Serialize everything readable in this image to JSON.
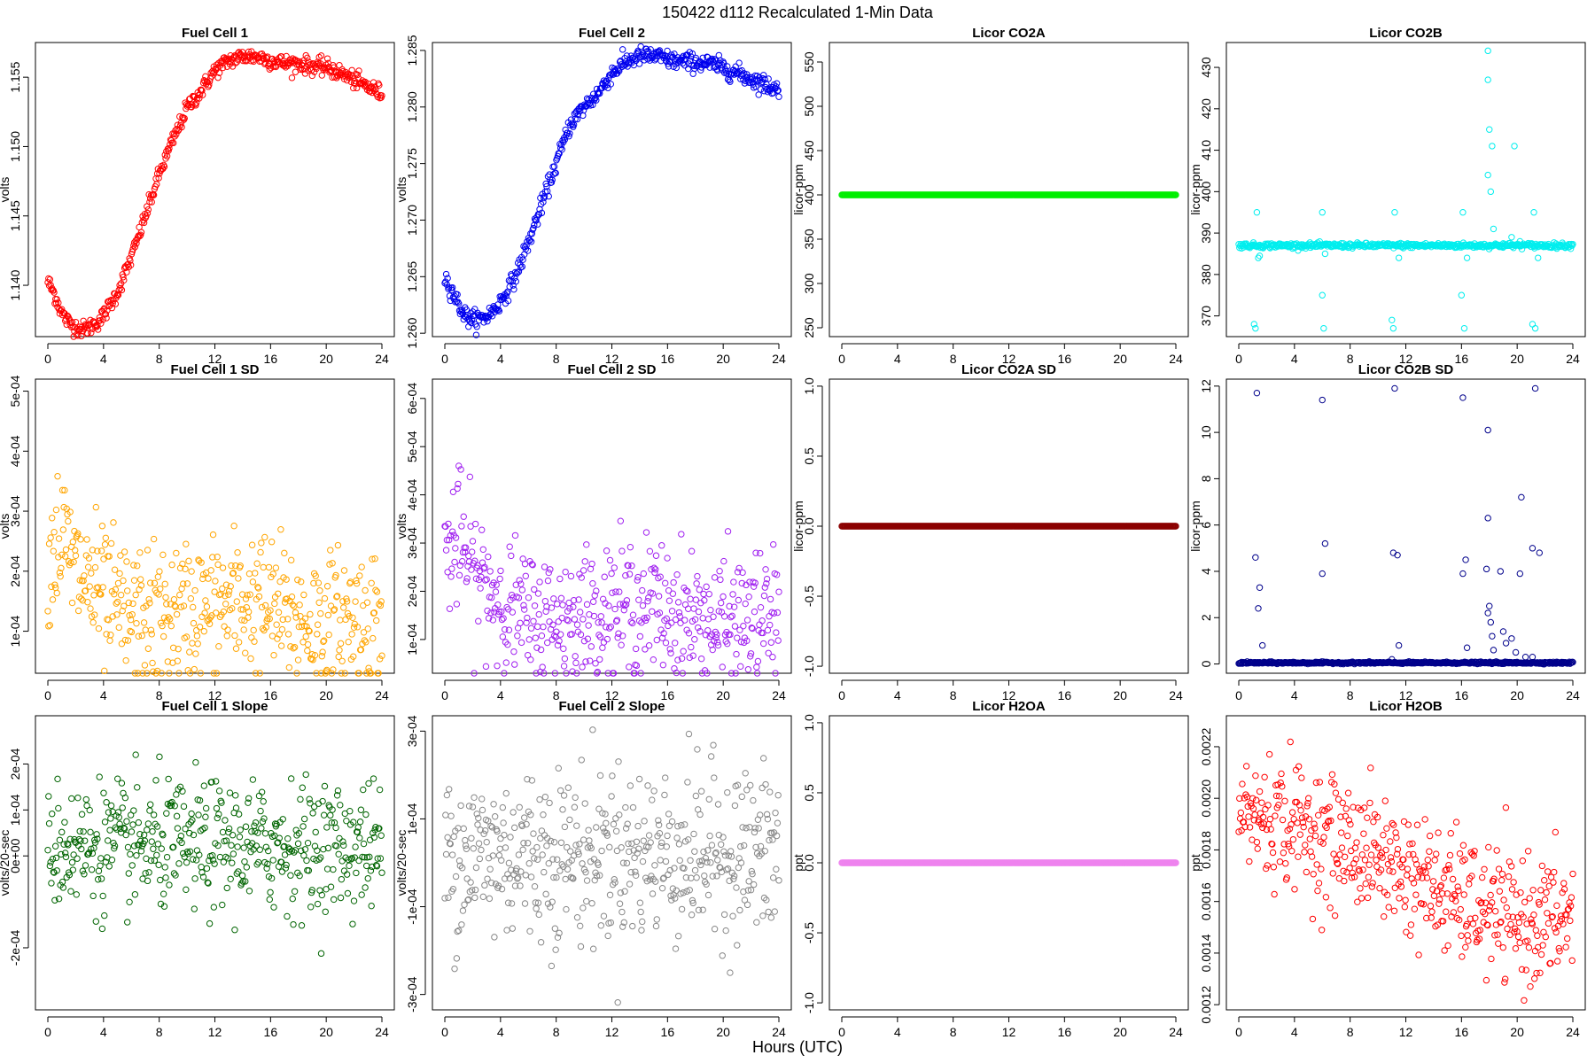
{
  "figure": {
    "title": "150422   d112   Recalculated 1-Min Data",
    "xlabel": "Hours (UTC)"
  },
  "chart_data": [
    {
      "type": "scatter",
      "title": "Fuel Cell 1",
      "ylabel": "volts",
      "color": "#ff0000",
      "xlim": [
        0,
        24
      ],
      "ylim": [
        1.1363,
        1.1575
      ],
      "xticks": [
        0,
        4,
        8,
        12,
        16,
        20,
        24
      ],
      "yticks": [
        "1.140",
        "1.145",
        "1.150",
        "1.155"
      ],
      "ytick_values": [
        1.14,
        1.145,
        1.15,
        1.155
      ],
      "series": [
        {
          "x": [
            0,
            0.5,
            1,
            1.5,
            2,
            2.5,
            3,
            3.5,
            4,
            5,
            6,
            7,
            8,
            9,
            10,
            11,
            12,
            13,
            14,
            15,
            16,
            17,
            18,
            19,
            20,
            21,
            22,
            23,
            24
          ],
          "y": [
            1.1403,
            1.1393,
            1.138,
            1.1373,
            1.137,
            1.1368,
            1.137,
            1.1373,
            1.1378,
            1.1395,
            1.142,
            1.145,
            1.148,
            1.1505,
            1.1528,
            1.154,
            1.1555,
            1.1562,
            1.1565,
            1.1565,
            1.1562,
            1.156,
            1.156,
            1.1558,
            1.1557,
            1.1553,
            1.1548,
            1.1543,
            1.1538
          ],
          "spread": 0.0003
        }
      ]
    },
    {
      "type": "scatter",
      "title": "Fuel Cell 2",
      "ylabel": "volts",
      "color": "#0000ee",
      "xlim": [
        0,
        24
      ],
      "ylim": [
        1.2597,
        1.2857
      ],
      "xticks": [
        0,
        4,
        8,
        12,
        16,
        20,
        24
      ],
      "yticks": [
        "1.260",
        "1.265",
        "1.270",
        "1.275",
        "1.280",
        "1.285"
      ],
      "ytick_values": [
        1.26,
        1.265,
        1.27,
        1.275,
        1.28,
        1.285
      ],
      "series": [
        {
          "x": [
            0,
            0.5,
            1,
            1.5,
            2,
            2.5,
            3,
            3.5,
            4,
            5,
            6,
            7,
            8,
            9,
            10,
            11,
            12,
            13,
            14,
            15,
            16,
            17,
            18,
            19,
            20,
            21,
            22,
            23,
            24
          ],
          "y": [
            1.265,
            1.2638,
            1.2625,
            1.2615,
            1.2612,
            1.2612,
            1.2615,
            1.262,
            1.2628,
            1.2648,
            1.268,
            1.2715,
            1.275,
            1.2785,
            1.28,
            1.2812,
            1.283,
            1.284,
            1.2845,
            1.2845,
            1.2842,
            1.284,
            1.284,
            1.2838,
            1.2835,
            1.283,
            1.2825,
            1.282,
            1.2815
          ],
          "spread": 0.0004
        }
      ]
    },
    {
      "type": "scatter",
      "title": "Licor CO2A",
      "ylabel": "licor-ppm",
      "color": "#00ee00",
      "xlim": [
        0,
        24
      ],
      "ylim": [
        240,
        572
      ],
      "xticks": [
        0,
        4,
        8,
        12,
        16,
        20,
        24
      ],
      "yticks": [
        "250",
        "300",
        "350",
        "400",
        "450",
        "500",
        "550"
      ],
      "ytick_values": [
        250,
        300,
        350,
        400,
        450,
        500,
        550
      ],
      "series": [
        {
          "x": [
            0,
            24
          ],
          "y": [
            400,
            400
          ],
          "spread": 0
        }
      ]
    },
    {
      "type": "scatter",
      "title": "Licor CO2B",
      "ylabel": "licor-ppm",
      "color": "#00eeee",
      "xlim": [
        0,
        24
      ],
      "ylim": [
        365,
        436
      ],
      "xticks": [
        0,
        4,
        8,
        12,
        16,
        20,
        24
      ],
      "yticks": [
        "370",
        "380",
        "390",
        "400",
        "410",
        "420",
        "430"
      ],
      "ytick_values": [
        370,
        380,
        390,
        400,
        410,
        420,
        430
      ],
      "series": [
        {
          "x": [
            0,
            24
          ],
          "y": [
            387,
            387
          ],
          "spread": 0.3
        }
      ],
      "outliers": [
        [
          1.3,
          395
        ],
        [
          1.4,
          384
        ],
        [
          1.5,
          384.5
        ],
        [
          1.2,
          367
        ],
        [
          1.1,
          368
        ],
        [
          6.0,
          395
        ],
        [
          6.1,
          367
        ],
        [
          6.0,
          375
        ],
        [
          6.2,
          385
        ],
        [
          11.2,
          395
        ],
        [
          11.1,
          367
        ],
        [
          11.0,
          369
        ],
        [
          11.5,
          384
        ],
        [
          16.1,
          395
        ],
        [
          16.2,
          367
        ],
        [
          16.0,
          375
        ],
        [
          16.4,
          384
        ],
        [
          17.9,
          434
        ],
        [
          17.9,
          427
        ],
        [
          18.0,
          415
        ],
        [
          18.2,
          411
        ],
        [
          17.9,
          404
        ],
        [
          18.1,
          400
        ],
        [
          18.3,
          391
        ],
        [
          19.8,
          411
        ],
        [
          19.6,
          389
        ],
        [
          21.2,
          395
        ],
        [
          21.3,
          367
        ],
        [
          21.1,
          368
        ],
        [
          21.5,
          384
        ],
        [
          19.0,
          387.5
        ],
        [
          20.2,
          388
        ]
      ]
    },
    {
      "type": "scatter",
      "title": "Fuel Cell 1 SD",
      "ylabel": "volts",
      "color": "#ffa500",
      "xlim": [
        0,
        24
      ],
      "ylim": [
        3e-05,
        0.00052
      ],
      "xticks": [
        0,
        4,
        8,
        12,
        16,
        20,
        24
      ],
      "yticks": [
        "1e-04",
        "2e-04",
        "3e-04",
        "4e-04",
        "5e-04"
      ],
      "ytick_values": [
        0.0001,
        0.0002,
        0.0003,
        0.0004,
        0.0005
      ],
      "series": [
        {
          "x": [
            0,
            1,
            2,
            3,
            4,
            6,
            8,
            10,
            12,
            14,
            16,
            18,
            20,
            22,
            24
          ],
          "y": [
            0.00022,
            0.00026,
            0.0002,
            0.00018,
            0.00015,
            0.00012,
            0.00012,
            0.00013,
            0.00014,
            0.00015,
            0.00014,
            0.00012,
            0.00011,
            0.00012,
            0.00012
          ],
          "spread": 6e-05
        }
      ]
    },
    {
      "type": "scatter",
      "title": "Fuel Cell 2 SD",
      "ylabel": "volts",
      "color": "#a020f0",
      "xlim": [
        0,
        24
      ],
      "ylim": [
        3e-05,
        0.00064
      ],
      "xticks": [
        0,
        4,
        8,
        12,
        16,
        20,
        24
      ],
      "yticks": [
        "1e-04",
        "2e-04",
        "3e-04",
        "4e-04",
        "5e-04",
        "6e-04"
      ],
      "ytick_values": [
        0.0001,
        0.0002,
        0.0003,
        0.0004,
        0.0005,
        0.0006
      ],
      "series": [
        {
          "x": [
            0,
            1,
            2,
            3,
            4,
            6,
            8,
            10,
            12,
            14,
            16,
            18,
            20,
            22,
            24
          ],
          "y": [
            0.00027,
            0.00031,
            0.00024,
            0.00021,
            0.00018,
            0.00014,
            0.00014,
            0.00015,
            0.00016,
            0.00017,
            0.00016,
            0.00014,
            0.00013,
            0.00014,
            0.00014
          ],
          "spread": 7e-05
        }
      ]
    },
    {
      "type": "scatter",
      "title": "Licor CO2A SD",
      "ylabel": "licor-ppm",
      "color": "#8b0000",
      "xlim": [
        0,
        24
      ],
      "ylim": [
        -1.05,
        1.05
      ],
      "xticks": [
        0,
        4,
        8,
        12,
        16,
        20,
        24
      ],
      "yticks": [
        "-1.0",
        "-0.5",
        "0.0",
        "0.5",
        "1.0"
      ],
      "ytick_values": [
        -1.0,
        -0.5,
        0.0,
        0.5,
        1.0
      ],
      "series": [
        {
          "x": [
            0,
            24
          ],
          "y": [
            0,
            0
          ],
          "spread": 0
        }
      ]
    },
    {
      "type": "scatter",
      "title": "Licor CO2B SD",
      "ylabel": "licor-ppm",
      "color": "#00008b",
      "xlim": [
        0,
        24
      ],
      "ylim": [
        -0.4,
        12.3
      ],
      "xticks": [
        0,
        4,
        8,
        12,
        16,
        20,
        24
      ],
      "yticks": [
        "0",
        "2",
        "4",
        "6",
        "8",
        "10",
        "12"
      ],
      "ytick_values": [
        0,
        2,
        4,
        6,
        8,
        10,
        12
      ],
      "series": [
        {
          "x": [
            0,
            24
          ],
          "y": [
            0.05,
            0.05
          ],
          "spread": 0.02
        }
      ],
      "outliers": [
        [
          1.3,
          11.7
        ],
        [
          1.2,
          4.6
        ],
        [
          1.5,
          3.3
        ],
        [
          1.4,
          2.4
        ],
        [
          1.7,
          0.8
        ],
        [
          6.0,
          11.4
        ],
        [
          6.2,
          5.2
        ],
        [
          6.0,
          3.9
        ],
        [
          11.2,
          11.9
        ],
        [
          11.1,
          4.8
        ],
        [
          11.4,
          4.7
        ],
        [
          11.0,
          0.2
        ],
        [
          11.5,
          0.8
        ],
        [
          16.1,
          11.5
        ],
        [
          16.3,
          4.5
        ],
        [
          16.1,
          3.9
        ],
        [
          16.4,
          0.7
        ],
        [
          17.9,
          10.1
        ],
        [
          17.9,
          6.3
        ],
        [
          17.8,
          4.1
        ],
        [
          18.0,
          2.5
        ],
        [
          17.9,
          2.2
        ],
        [
          18.1,
          1.8
        ],
        [
          18.2,
          1.2
        ],
        [
          18.3,
          0.6
        ],
        [
          18.8,
          4.0
        ],
        [
          19.0,
          1.4
        ],
        [
          19.2,
          0.9
        ],
        [
          19.6,
          1.1
        ],
        [
          19.9,
          0.5
        ],
        [
          20.3,
          7.2
        ],
        [
          20.2,
          3.9
        ],
        [
          20.6,
          0.3
        ],
        [
          21.3,
          11.9
        ],
        [
          21.1,
          5.0
        ],
        [
          21.6,
          4.8
        ],
        [
          21.1,
          0.3
        ]
      ]
    },
    {
      "type": "scatter",
      "title": "Fuel Cell 1 Slope",
      "ylabel": "volts/20-sec",
      "color": "#006400",
      "xlim": [
        0,
        24
      ],
      "ylim": [
        -0.000335,
        0.000305
      ],
      "xticks": [
        0,
        4,
        8,
        12,
        16,
        20,
        24
      ],
      "yticks": [
        "-2e-04",
        "0e+00",
        "1e-04",
        "2e-04"
      ],
      "ytick_values": [
        -0.0002,
        0.0,
        0.0001,
        0.0002
      ],
      "series": [
        {
          "x": [
            0,
            24
          ],
          "y": [
            2e-05,
            2e-05
          ],
          "spread": 7e-05
        }
      ]
    },
    {
      "type": "scatter",
      "title": "Fuel Cell 2 Slope",
      "ylabel": "volts/20-sec",
      "color": "#888888",
      "xlim": [
        0,
        24
      ],
      "ylim": [
        -0.000335,
        0.000335
      ],
      "xticks": [
        0,
        4,
        8,
        12,
        16,
        20,
        24
      ],
      "yticks": [
        "-3e-04",
        "-1e-04",
        "1e-04",
        "3e-04"
      ],
      "ytick_values": [
        -0.0003,
        -0.0001,
        0.0001,
        0.0003
      ],
      "series": [
        {
          "x": [
            0,
            24
          ],
          "y": [
            2e-05,
            2e-05
          ],
          "spread": 0.0001
        }
      ]
    },
    {
      "type": "scatter",
      "title": "Licor H2OA",
      "ylabel": "ppt",
      "color": "#ee82ee",
      "xlim": [
        0,
        24
      ],
      "ylim": [
        -1.05,
        1.05
      ],
      "xticks": [
        0,
        4,
        8,
        12,
        16,
        20,
        24
      ],
      "yticks": [
        "-1.0",
        "-0.5",
        "0.0",
        "0.5",
        "1.0"
      ],
      "ytick_values": [
        -1.0,
        -0.5,
        0.0,
        0.5,
        1.0
      ],
      "series": [
        {
          "x": [
            0,
            24
          ],
          "y": [
            0,
            0
          ],
          "spread": 0
        }
      ]
    },
    {
      "type": "scatter",
      "title": "Licor H2OB",
      "ylabel": "ppt",
      "color": "#ff0000",
      "xlim": [
        0,
        24
      ],
      "ylim": [
        0.00118,
        0.00232
      ],
      "xticks": [
        0,
        4,
        8,
        12,
        16,
        20,
        24
      ],
      "yticks": [
        "0.0012",
        "0.0014",
        "0.0016",
        "0.0018",
        "0.0020",
        "0.0022"
      ],
      "ytick_values": [
        0.0012,
        0.0014,
        0.0016,
        0.0018,
        0.002,
        0.0022
      ],
      "series": [
        {
          "x": [
            0,
            2,
            4,
            6,
            8,
            10,
            12,
            14,
            16,
            18,
            20,
            22,
            24
          ],
          "y": [
            0.00195,
            0.00192,
            0.0019,
            0.00185,
            0.00182,
            0.00178,
            0.00172,
            0.00165,
            0.0016,
            0.00156,
            0.00152,
            0.00152,
            0.00155
          ],
          "spread": 0.00012
        }
      ]
    }
  ]
}
